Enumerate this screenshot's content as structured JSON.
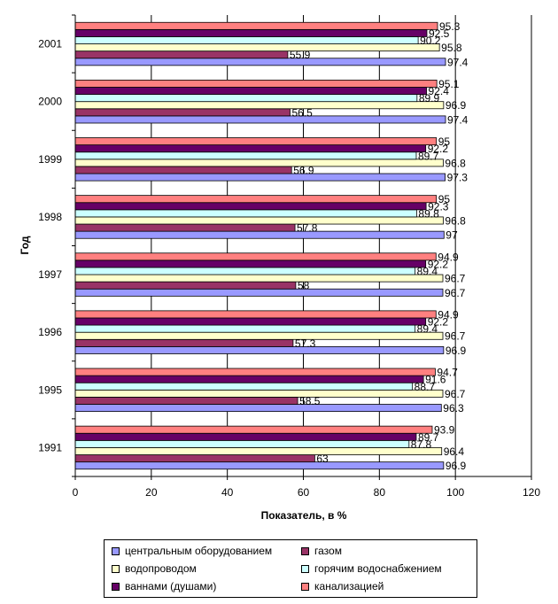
{
  "chart_data": {
    "type": "bar",
    "orientation": "horizontal",
    "categories": [
      "1991",
      "1995",
      "1996",
      "1997",
      "1998",
      "1999",
      "2000",
      "2001"
    ],
    "series": [
      {
        "name": "центральным оборудованием",
        "color": "#9999FF",
        "values": [
          96.9,
          96.3,
          96.9,
          96.7,
          97,
          97.3,
          97.4,
          97.4
        ]
      },
      {
        "name": "газом",
        "color": "#993366",
        "values": [
          63,
          58.5,
          57.3,
          58,
          57.8,
          56.9,
          56.5,
          55.9
        ]
      },
      {
        "name": "водопроводом",
        "color": "#FFFFCC",
        "values": [
          96.4,
          96.7,
          96.7,
          96.7,
          96.8,
          96.8,
          96.9,
          95.8
        ]
      },
      {
        "name": "горячим водоснабжением",
        "color": "#CCFFFF",
        "values": [
          87.8,
          88.7,
          89.4,
          89.4,
          89.8,
          89.7,
          89.9,
          90.2
        ]
      },
      {
        "name": "ваннами (душами)",
        "color": "#660066",
        "values": [
          89.7,
          91.6,
          92.2,
          92.2,
          92.3,
          92.2,
          92.4,
          92.5
        ]
      },
      {
        "name": "канализацией",
        "color": "#FF8080",
        "values": [
          93.9,
          94.7,
          94.9,
          94.9,
          95,
          95,
          95.1,
          95.3
        ]
      }
    ],
    "data_labels": [
      [
        "96.9",
        "63",
        "96.4",
        "87.8",
        "89.7",
        "93.9"
      ],
      [
        "96.3",
        "58.5",
        "96.7",
        "88.7",
        "91.6",
        "94.7"
      ],
      [
        "96.9",
        "57.3",
        "96.7",
        "89.4",
        "92.2",
        "94.9"
      ],
      [
        "96.7",
        "58",
        "96.7",
        "89.4",
        "92.2",
        "94.9"
      ],
      [
        "97",
        "57.8",
        "96.8",
        "89.8",
        "92.3",
        "95"
      ],
      [
        "97.3",
        "56.9",
        "96.8",
        "89.7",
        "92.2",
        "95"
      ],
      [
        "97.4",
        "56.5",
        "96.9",
        "89.9",
        "92.4",
        "95.1"
      ],
      [
        "97.4",
        "55.9",
        "95.8",
        "90.2",
        "92.5",
        "95.3"
      ]
    ],
    "xlabel": "Показатель, в %",
    "ylabel": "Год",
    "xlim": [
      0,
      120
    ],
    "xticks": [
      "0",
      "20",
      "40",
      "60",
      "80",
      "100",
      "120"
    ],
    "grid": "vertical",
    "legend_position": "bottom"
  }
}
